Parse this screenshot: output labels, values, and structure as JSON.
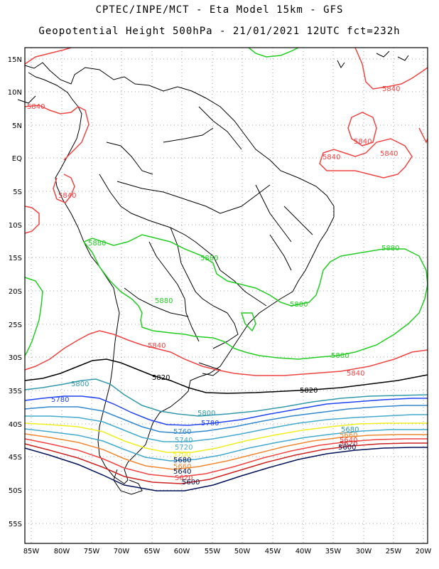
{
  "header": {
    "line1": "CPTEC/INPE/MCT -  Eta Model 15km - GFS",
    "line2": "Geopotential Height 500hPa - 21/01/2021 12UTC fct=232h"
  },
  "axes": {
    "lat_labels": [
      "15N",
      "10N",
      "5N",
      "EQ",
      "5S",
      "10S",
      "15S",
      "20S",
      "25S",
      "30S",
      "35S",
      "40S",
      "45S",
      "50S",
      "55S"
    ],
    "lon_labels": [
      "85W",
      "80W",
      "75W",
      "70W",
      "65W",
      "60W",
      "55W",
      "50W",
      "45W",
      "40W",
      "35W",
      "30W",
      "25W",
      "20W"
    ]
  },
  "colors": {
    "c5880": "#22cc22",
    "c5840": "#ee4444",
    "c5820": "#000000",
    "c5800": "#3399aa",
    "c5780": "#2244ee",
    "c5760": "#3388cc",
    "c5740": "#44aacc",
    "c5720": "#eeee22",
    "c5700": "#ee8833",
    "c5680": "#ee4444",
    "c5660": "#cc2222",
    "c5640": "#001155",
    "coast": "#000000"
  },
  "contour_labels": {
    "l5840_colombia": "5840",
    "l5840_peru": "5840",
    "l5840_atl1": "5840",
    "l5840_atl2": "5840",
    "l5840_atl3": "5840",
    "l5840_atl4": "5840",
    "l5880_bol": "5880",
    "l5880_br": "5880",
    "l5880_atl": "5880",
    "l5880_par": "5880",
    "l5880_se": "5880",
    "l5880_s": "5880",
    "l5840_arg": "5840",
    "l5840_s": "5840",
    "l5820_w": "5820",
    "l5820_e": "5820",
    "l5800_w": "5800",
    "l5780_w": "5780",
    "l5800_e": "5800",
    "l5760": "5760",
    "l5740": "5740",
    "l5720": "5720",
    "l5700": "5700",
    "l5680": "5680",
    "l5660": "5660",
    "l5640": "5640",
    "l5620": "5620",
    "l5600": "5600",
    "l5780_e": "5780",
    "l5680_e": "5680",
    "l5660_e": "5660",
    "l5640_e": "5640",
    "l5620_e": "5620",
    "l5600_e": "5600"
  }
}
